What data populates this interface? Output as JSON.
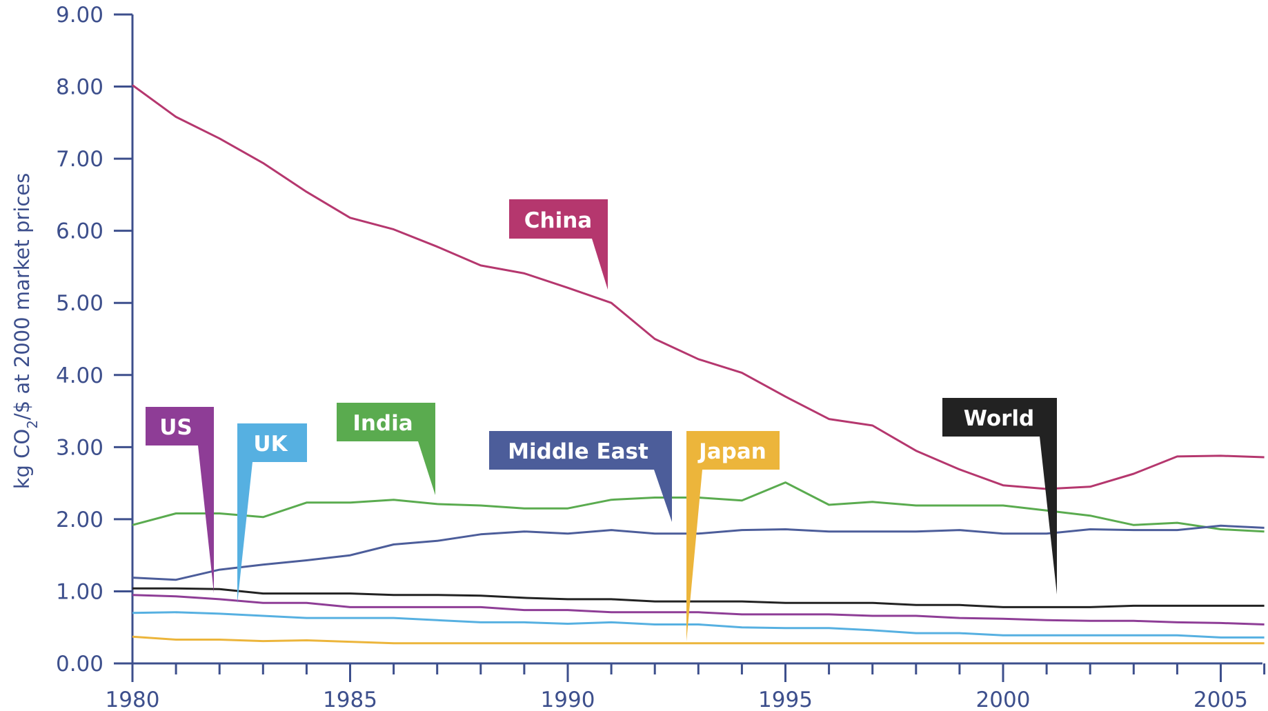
{
  "chart_data": {
    "type": "line",
    "title": "",
    "xlabel": "",
    "ylabel_prefix": "kg CO",
    "ylabel_sub": "2",
    "ylabel_suffix": "/$ at 2000 market prices",
    "x": [
      1980,
      1981,
      1982,
      1983,
      1984,
      1985,
      1986,
      1987,
      1988,
      1989,
      1990,
      1991,
      1992,
      1993,
      1994,
      1995,
      1996,
      1997,
      1998,
      1999,
      2000,
      2001,
      2002,
      2003,
      2004,
      2005,
      2006
    ],
    "xlim": [
      1980,
      2006
    ],
    "ylim": [
      0,
      9
    ],
    "x_ticks": [
      {
        "value": 1980,
        "label": "1980"
      },
      {
        "value": 1985,
        "label": "1985"
      },
      {
        "value": 1990,
        "label": "1990"
      },
      {
        "value": 1995,
        "label": "1995"
      },
      {
        "value": 2000,
        "label": "2000"
      },
      {
        "value": 2005,
        "label": "2005"
      }
    ],
    "y_ticks": [
      {
        "value": 0,
        "label": "0.00"
      },
      {
        "value": 1,
        "label": "1.00"
      },
      {
        "value": 2,
        "label": "2.00"
      },
      {
        "value": 3,
        "label": "3.00"
      },
      {
        "value": 4,
        "label": "4.00"
      },
      {
        "value": 5,
        "label": "5.00"
      },
      {
        "value": 6,
        "label": "6.00"
      },
      {
        "value": 7,
        "label": "7.00"
      },
      {
        "value": 8,
        "label": "8.00"
      },
      {
        "value": 9,
        "label": "9.00"
      }
    ],
    "grid": false,
    "legend": "callouts",
    "series": [
      {
        "name": "China",
        "color": "#b5376e",
        "values": [
          8.02,
          7.58,
          7.28,
          6.94,
          6.54,
          6.18,
          6.02,
          5.78,
          5.52,
          5.41,
          5.21,
          5.0,
          4.5,
          4.22,
          4.03,
          3.7,
          3.39,
          3.3,
          2.95,
          2.69,
          2.47,
          2.42,
          2.45,
          2.63,
          2.87,
          2.88,
          2.86
        ]
      },
      {
        "name": "India",
        "color": "#5aab4f",
        "values": [
          1.92,
          2.08,
          2.08,
          2.03,
          2.23,
          2.23,
          2.27,
          2.21,
          2.19,
          2.15,
          2.15,
          2.27,
          2.3,
          2.3,
          2.26,
          2.51,
          2.2,
          2.24,
          2.19,
          2.19,
          2.19,
          2.12,
          2.05,
          1.92,
          1.95,
          1.86,
          1.83
        ]
      },
      {
        "name": "Middle East",
        "color": "#4c5d9a",
        "values": [
          1.19,
          1.16,
          1.3,
          1.37,
          1.43,
          1.5,
          1.65,
          1.7,
          1.79,
          1.83,
          1.8,
          1.85,
          1.8,
          1.8,
          1.85,
          1.86,
          1.83,
          1.83,
          1.83,
          1.85,
          1.8,
          1.8,
          1.86,
          1.85,
          1.85,
          1.91,
          1.88
        ]
      },
      {
        "name": "World",
        "color": "#222222",
        "values": [
          1.04,
          1.04,
          1.03,
          0.97,
          0.97,
          0.97,
          0.95,
          0.95,
          0.94,
          0.91,
          0.89,
          0.89,
          0.86,
          0.86,
          0.86,
          0.84,
          0.84,
          0.84,
          0.81,
          0.81,
          0.78,
          0.78,
          0.78,
          0.8,
          0.8,
          0.8,
          0.8
        ]
      },
      {
        "name": "US",
        "color": "#8e3d96",
        "values": [
          0.95,
          0.93,
          0.89,
          0.84,
          0.84,
          0.78,
          0.78,
          0.78,
          0.78,
          0.74,
          0.74,
          0.71,
          0.71,
          0.71,
          0.68,
          0.68,
          0.68,
          0.66,
          0.66,
          0.63,
          0.62,
          0.6,
          0.59,
          0.59,
          0.57,
          0.56,
          0.54
        ]
      },
      {
        "name": "UK",
        "color": "#56b0e1",
        "values": [
          0.7,
          0.71,
          0.69,
          0.66,
          0.63,
          0.63,
          0.63,
          0.6,
          0.57,
          0.57,
          0.55,
          0.57,
          0.54,
          0.54,
          0.5,
          0.49,
          0.49,
          0.46,
          0.42,
          0.42,
          0.39,
          0.39,
          0.39,
          0.39,
          0.39,
          0.36,
          0.36
        ]
      },
      {
        "name": "Japan",
        "color": "#ecb53b",
        "values": [
          0.37,
          0.33,
          0.33,
          0.31,
          0.32,
          0.3,
          0.28,
          0.28,
          0.28,
          0.28,
          0.28,
          0.28,
          0.28,
          0.28,
          0.28,
          0.28,
          0.28,
          0.28,
          0.28,
          0.28,
          0.28,
          0.28,
          0.28,
          0.28,
          0.28,
          0.28,
          0.28
        ]
      }
    ],
    "callouts": [
      {
        "text": "China",
        "color": "#b5376e"
      },
      {
        "text": "US",
        "color": "#8e3d96"
      },
      {
        "text": "UK",
        "color": "#56b0e1"
      },
      {
        "text": "India",
        "color": "#5aab4f"
      },
      {
        "text": "Middle East",
        "color": "#4c5d9a"
      },
      {
        "text": "Japan",
        "color": "#ecb53b"
      },
      {
        "text": "World",
        "color": "#222222"
      }
    ],
    "axis_color": "#3d4f8c"
  }
}
